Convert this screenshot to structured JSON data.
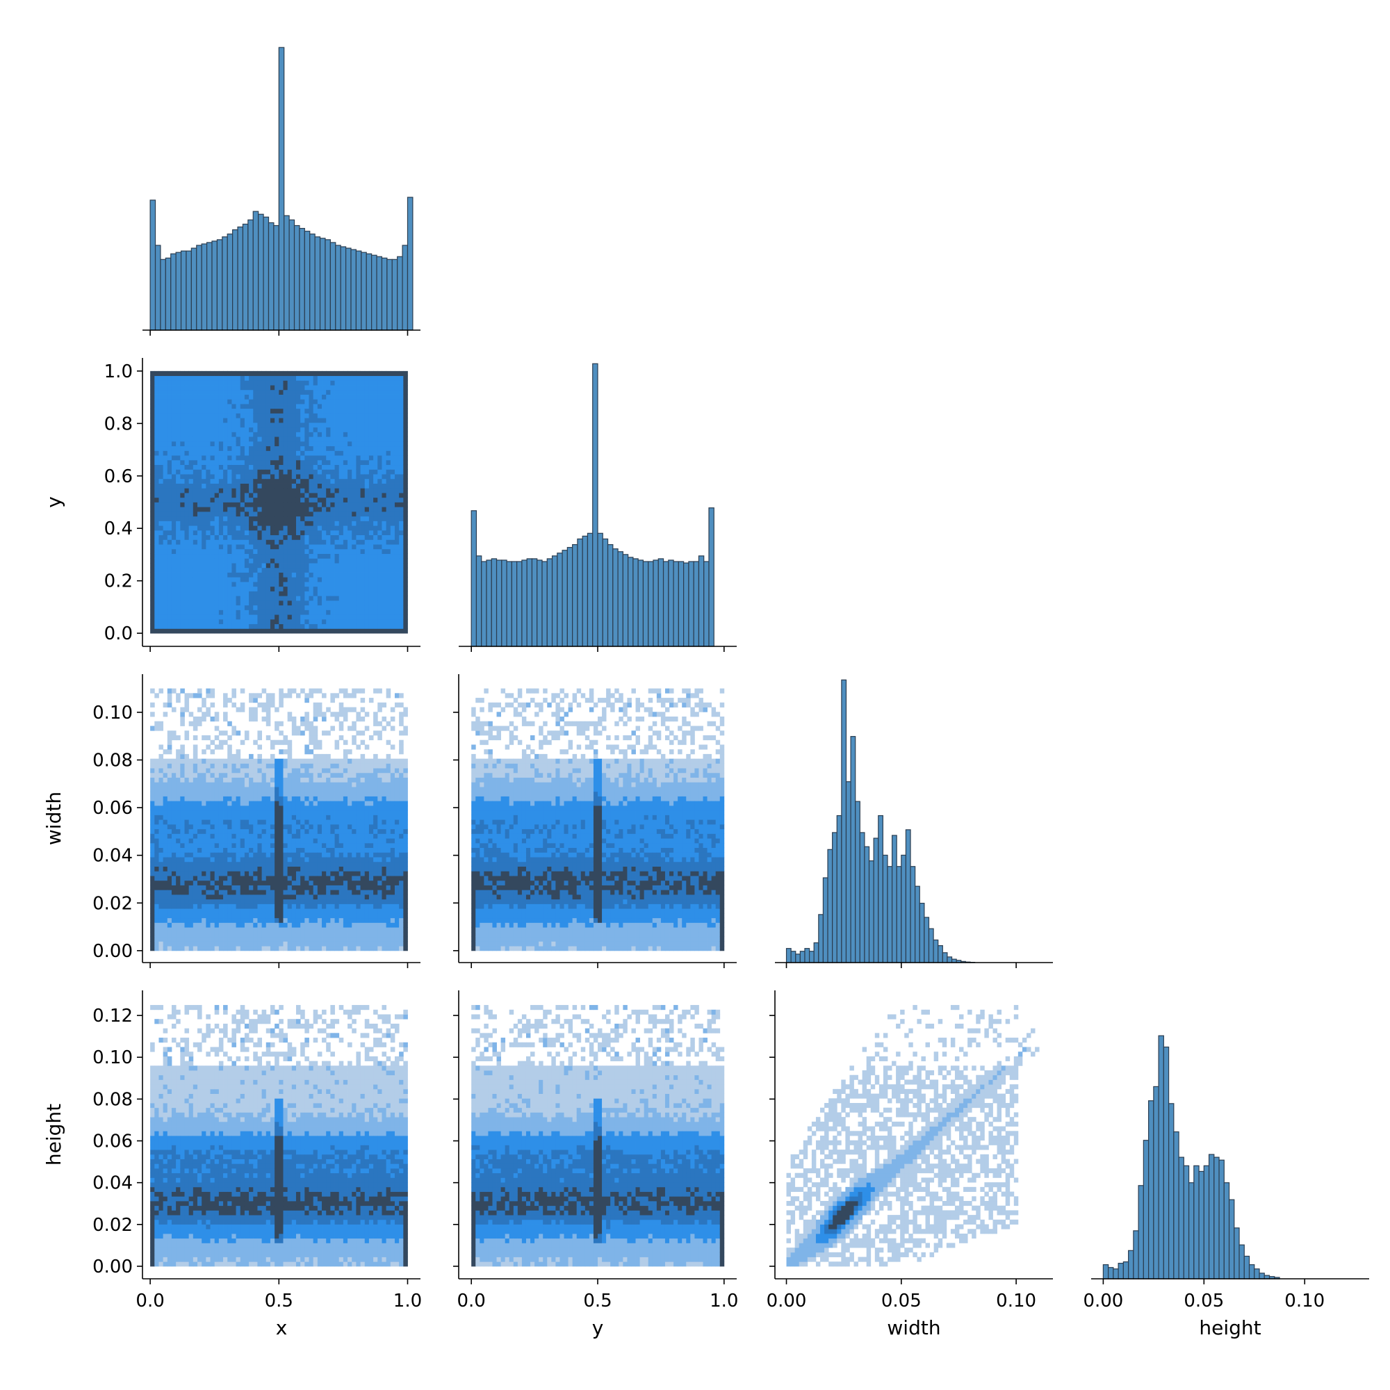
{
  "chart_data": {
    "type": "pairplot",
    "variables": [
      "x",
      "y",
      "width",
      "height"
    ],
    "corner": true,
    "colors": {
      "hist_fill": "#4f8fc0",
      "hist_edge": "#2b3d50",
      "heat_light": "#b3cde8",
      "heat_mid": "#2e8fe8",
      "heat_dark": "#34485e"
    },
    "axes": {
      "x": {
        "label": "x",
        "range": [
          -0.03,
          1.05
        ],
        "ticks": [
          0.0,
          0.5,
          1.0
        ],
        "tick_labels": [
          "0.0",
          "0.5",
          "1.0"
        ]
      },
      "y": {
        "label": "y",
        "range": [
          -0.05,
          1.05
        ],
        "ticks": [
          0.0,
          0.2,
          0.4,
          0.6,
          0.8,
          1.0
        ],
        "tick_labels": [
          "0.0",
          "0.2",
          "0.4",
          "0.6",
          "0.8",
          "1.0"
        ],
        "x_ticks": [
          0.0,
          0.5,
          1.0
        ],
        "x_tick_labels": [
          "0.0",
          "0.5",
          "1.0"
        ]
      },
      "width": {
        "label": "width",
        "range": [
          -0.005,
          0.116
        ],
        "ticks": [
          0.0,
          0.02,
          0.04,
          0.06,
          0.08,
          0.1
        ],
        "tick_labels": [
          "0.00",
          "0.02",
          "0.04",
          "0.06",
          "0.08",
          "0.10"
        ],
        "x_ticks": [
          0.0,
          0.05,
          0.1
        ],
        "x_tick_labels": [
          "0.00",
          "0.05",
          "0.10"
        ]
      },
      "height": {
        "label": "height",
        "range": [
          -0.006,
          0.132
        ],
        "ticks": [
          0.0,
          0.02,
          0.04,
          0.06,
          0.08,
          0.1,
          0.12
        ],
        "tick_labels": [
          "0.00",
          "0.02",
          "0.04",
          "0.06",
          "0.08",
          "0.10",
          "0.12"
        ],
        "x_ticks": [
          0.0,
          0.05,
          0.1
        ],
        "x_tick_labels": [
          "0.00",
          "0.05",
          "0.10"
        ]
      }
    },
    "diagonal_histograms": [
      {
        "variable": "x",
        "bin_start": 0.0,
        "bin_width": 0.02,
        "counts_relative": [
          0.46,
          0.3,
          0.25,
          0.255,
          0.27,
          0.275,
          0.28,
          0.28,
          0.29,
          0.3,
          0.305,
          0.31,
          0.315,
          0.32,
          0.33,
          0.34,
          0.355,
          0.365,
          0.375,
          0.39,
          0.42,
          0.41,
          0.4,
          0.38,
          0.37,
          1.0,
          0.405,
          0.39,
          0.37,
          0.36,
          0.35,
          0.34,
          0.33,
          0.325,
          0.32,
          0.31,
          0.3,
          0.295,
          0.29,
          0.285,
          0.28,
          0.275,
          0.27,
          0.265,
          0.26,
          0.255,
          0.25,
          0.25,
          0.26,
          0.3,
          0.47
        ]
      },
      {
        "variable": "y",
        "bin_start": 0.0,
        "bin_width": 0.02,
        "counts_relative": [
          0.48,
          0.32,
          0.3,
          0.305,
          0.31,
          0.305,
          0.305,
          0.3,
          0.3,
          0.3,
          0.305,
          0.31,
          0.31,
          0.305,
          0.3,
          0.31,
          0.32,
          0.33,
          0.34,
          0.35,
          0.36,
          0.38,
          0.39,
          0.4,
          1.0,
          0.4,
          0.38,
          0.36,
          0.345,
          0.335,
          0.325,
          0.315,
          0.31,
          0.305,
          0.3,
          0.3,
          0.305,
          0.31,
          0.3,
          0.305,
          0.3,
          0.3,
          0.295,
          0.3,
          0.3,
          0.32,
          0.3,
          0.49
        ]
      },
      {
        "variable": "width",
        "bin_start": 0.0,
        "bin_width": 0.002,
        "counts_relative": [
          0.05,
          0.04,
          0.03,
          0.04,
          0.05,
          0.04,
          0.07,
          0.17,
          0.3,
          0.4,
          0.46,
          0.52,
          1.0,
          0.64,
          0.8,
          0.57,
          0.46,
          0.41,
          0.36,
          0.44,
          0.52,
          0.38,
          0.34,
          0.45,
          0.34,
          0.38,
          0.47,
          0.34,
          0.27,
          0.21,
          0.16,
          0.12,
          0.08,
          0.06,
          0.035,
          0.02,
          0.012,
          0.008,
          0.004,
          0.002,
          0.001,
          0.0,
          0.0,
          0.0,
          0.0,
          0.0,
          0.0,
          0.0,
          0.0,
          0.0,
          0.0
        ]
      },
      {
        "variable": "height",
        "bin_start": 0.0,
        "bin_width": 0.0025,
        "counts_relative": [
          0.05,
          0.04,
          0.035,
          0.055,
          0.06,
          0.1,
          0.17,
          0.33,
          0.49,
          0.63,
          0.68,
          0.86,
          0.82,
          0.62,
          0.52,
          0.43,
          0.4,
          0.34,
          0.4,
          0.38,
          0.4,
          0.44,
          0.43,
          0.42,
          0.34,
          0.28,
          0.18,
          0.12,
          0.08,
          0.05,
          0.035,
          0.02,
          0.012,
          0.008,
          0.005,
          0.0,
          0.0,
          0.0,
          0.0,
          0.0,
          0.0,
          0.0,
          0.0,
          0.0,
          0.0,
          0.0,
          0.0,
          0.0,
          0.0,
          0.0,
          0.0,
          0.0,
          0.0
        ]
      }
    ],
    "bivariate_histograms": [
      {
        "x": "x",
        "y": "y",
        "description_levels": "dense uniform, darker along borders and center cross"
      },
      {
        "x": "x",
        "y": "width",
        "description_levels": "densest near width 0.02-0.035, dark vertical bands at x=0, 0.5, 1"
      },
      {
        "x": "y",
        "y": "width",
        "description_levels": "densest near width 0.02-0.035, dark vertical bands at y=0, 0.5, 1"
      },
      {
        "x": "x",
        "y": "height",
        "description_levels": "densest near height 0.025-0.035, dark vertical band at x=0.5"
      },
      {
        "x": "y",
        "y": "height",
        "description_levels": "densest near height 0.025-0.035, dark vertical bands at y=0, 0.5, 1"
      },
      {
        "x": "width",
        "y": "height",
        "description_levels": "positive linear ridge from (0.015,0.015) to (0.06,0.06)"
      }
    ]
  }
}
